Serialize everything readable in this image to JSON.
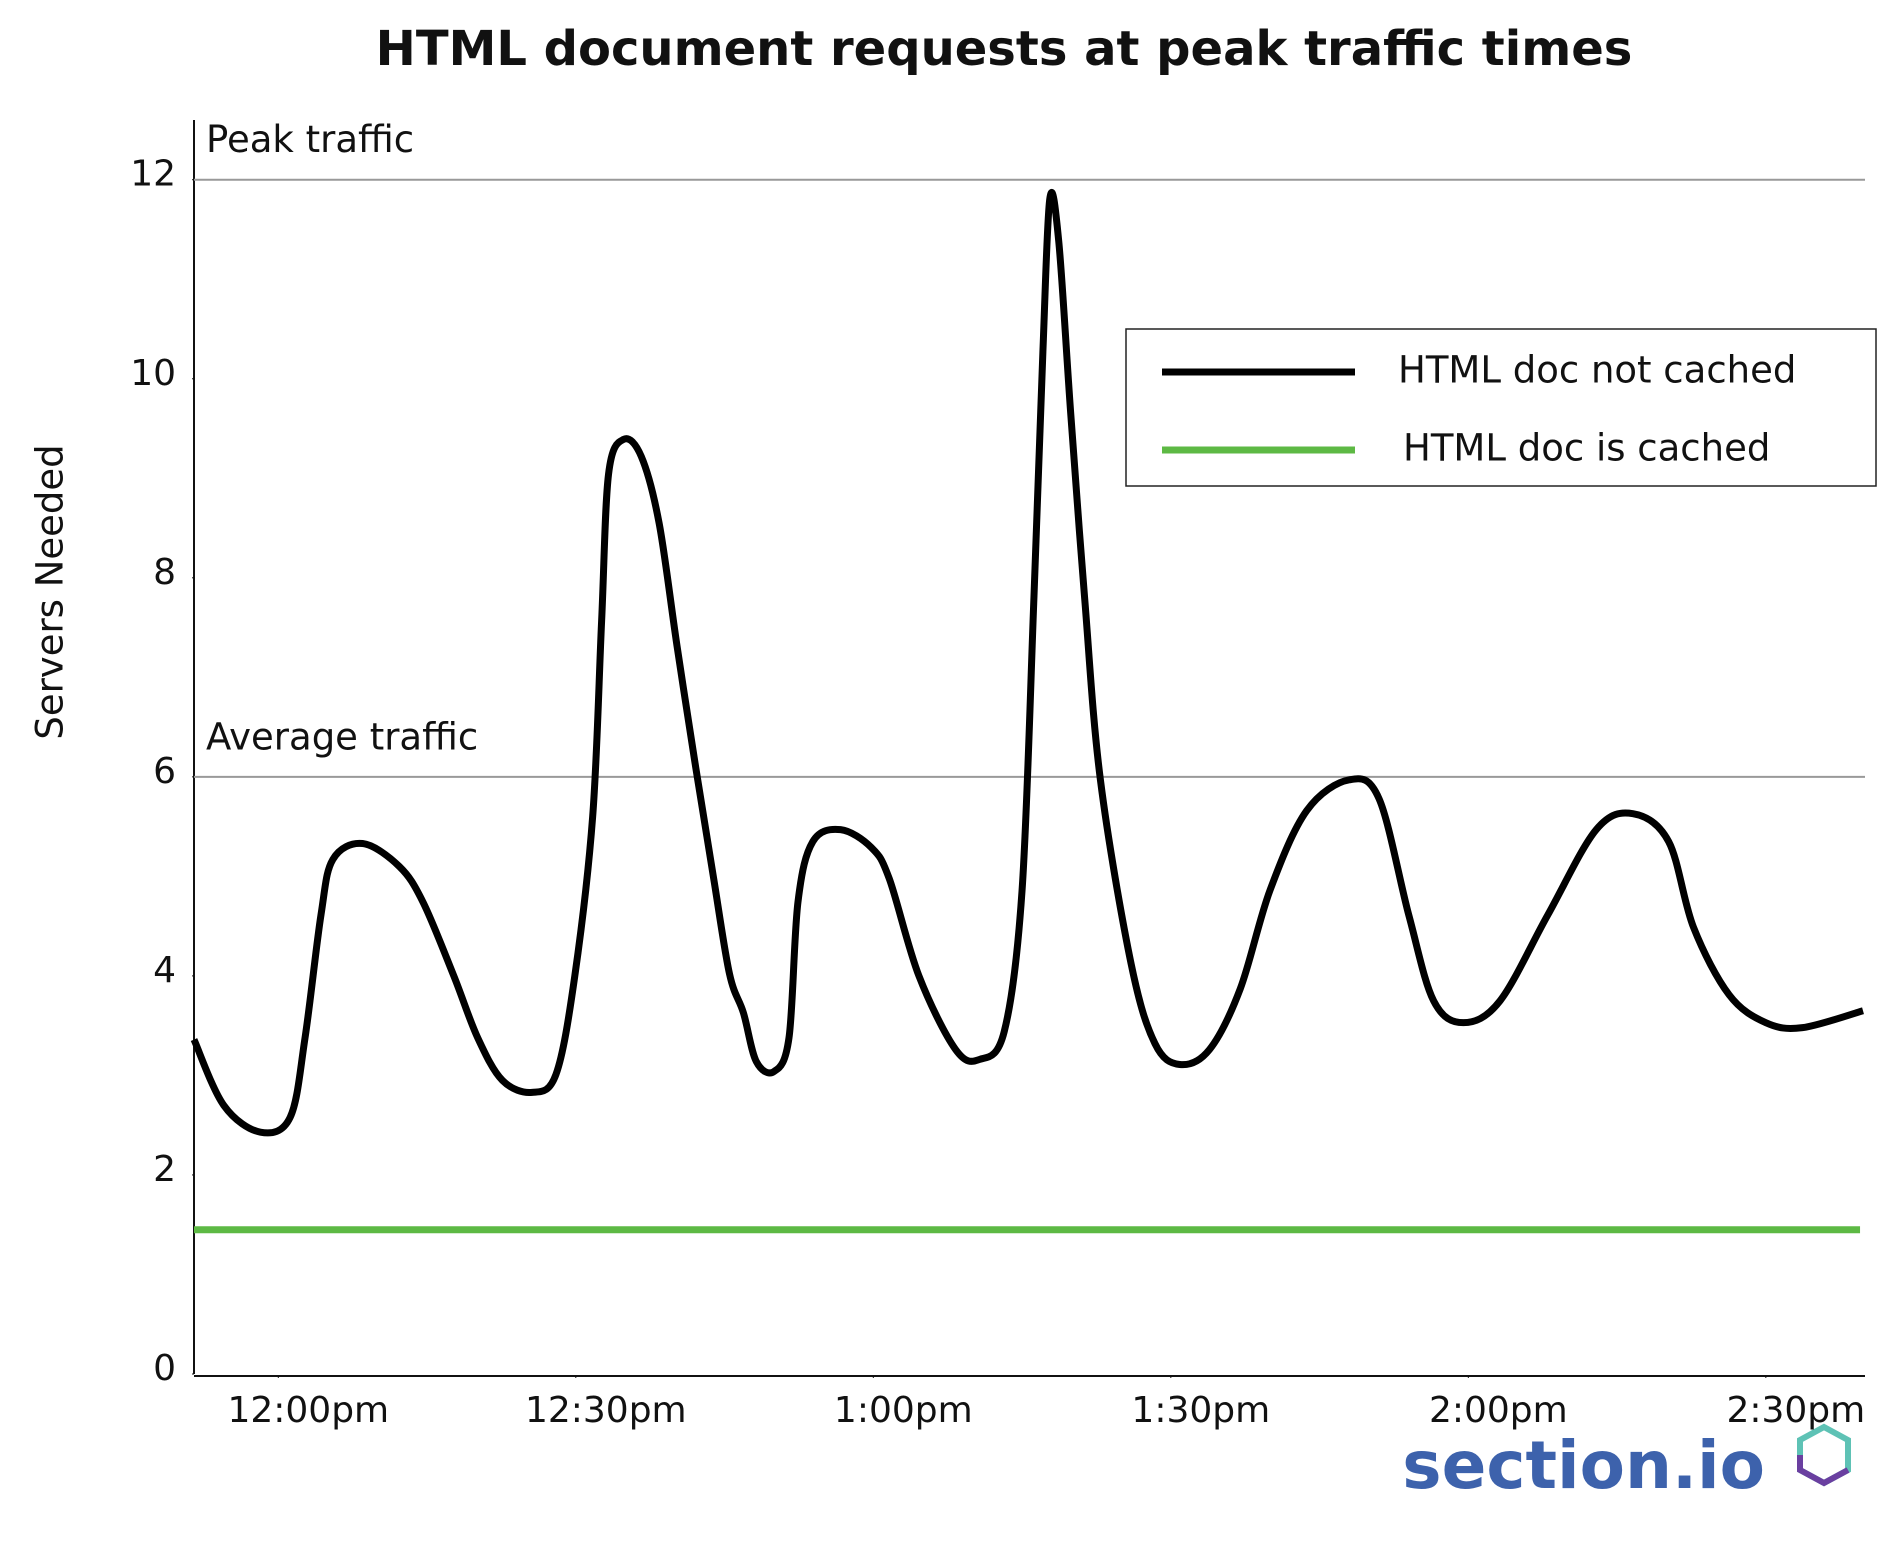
{
  "chart_data": {
    "type": "line",
    "title": "HTML document requests at peak traffic times",
    "ylabel": "Servers Needed",
    "xlim": [
      -8.5,
      160
    ],
    "ylim": [
      0,
      12.6
    ],
    "xticks": [
      {
        "value": 0,
        "label": "12:00pm"
      },
      {
        "value": 30,
        "label": "12:30pm"
      },
      {
        "value": 60,
        "label": "1:00pm"
      },
      {
        "value": 90,
        "label": "1:30pm"
      },
      {
        "value": 120,
        "label": "2:00pm"
      },
      {
        "value": 150,
        "label": "2:30pm"
      }
    ],
    "yticks": [
      0,
      2,
      4,
      6,
      8,
      10,
      12
    ],
    "reference_lines": [
      {
        "value": 12,
        "label": "Peak traffic"
      },
      {
        "value": 6,
        "label": "Average traffic"
      }
    ],
    "legend": "upper right",
    "series": [
      {
        "name": "HTML doc not cached",
        "color": "#000000",
        "x": [
          -8.5,
          -5.5,
          -1.8,
          1.2,
          2.7,
          4.3,
          5.5,
          8.5,
          12.2,
          14.6,
          17.7,
          20.1,
          22.6,
          25.6,
          28.0,
          29.9,
          31.7,
          32.6,
          33.3,
          34.8,
          36.6,
          38.4,
          40.2,
          42.1,
          43.9,
          45.5,
          46.9,
          48.2,
          50.0,
          51.5,
          52.4,
          53.9,
          56.7,
          59.8,
          61.6,
          64.6,
          68.3,
          70.7,
          73.2,
          75.0,
          76.2,
          77.1,
          77.8,
          78.7,
          79.9,
          81.3,
          82.9,
          86.0,
          88.4,
          90.9,
          93.9,
          97.0,
          100.0,
          103.7,
          108.0,
          111.0,
          114.0,
          116.5,
          119.5,
          123.2,
          128.0,
          132.9,
          136.6,
          140.2,
          142.7,
          146.3,
          150.0,
          153.7,
          159.8
        ],
        "values": [
          3.36,
          2.7,
          2.43,
          2.58,
          3.38,
          4.61,
          5.17,
          5.33,
          5.1,
          4.74,
          4.0,
          3.38,
          2.95,
          2.83,
          3.01,
          4.0,
          5.6,
          7.56,
          9.04,
          9.39,
          9.22,
          8.55,
          7.32,
          6.09,
          4.98,
          4.02,
          3.63,
          3.14,
          3.04,
          3.38,
          4.74,
          5.35,
          5.47,
          5.29,
          4.98,
          4.0,
          3.26,
          3.16,
          3.44,
          4.86,
          7.81,
          10.27,
          11.81,
          11.38,
          9.66,
          7.81,
          5.97,
          4.12,
          3.32,
          3.11,
          3.26,
          3.87,
          4.86,
          5.66,
          5.97,
          5.78,
          4.61,
          3.75,
          3.53,
          3.75,
          4.61,
          5.47,
          5.63,
          5.35,
          4.49,
          3.81,
          3.53,
          3.48,
          3.65
        ]
      },
      {
        "name": "HTML doc is cached",
        "color": "#5db944",
        "x": [
          -8.5,
          159.5
        ],
        "values": [
          1.45,
          1.45
        ]
      }
    ]
  },
  "logo": "section.io"
}
